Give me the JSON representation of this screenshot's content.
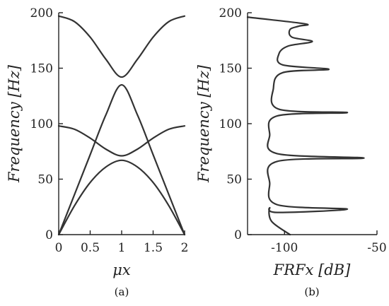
{
  "chart_data": [
    {
      "type": "line",
      "panel_label": "(a)",
      "xlabel": "μx",
      "ylabel": "Frequency [Hz]",
      "xlim": [
        0,
        2
      ],
      "ylim": [
        0,
        200
      ],
      "xticks": [
        "0",
        "0.5",
        "1",
        "1.5",
        "2"
      ],
      "xtick_values": [
        0,
        0.5,
        1,
        1.5,
        2
      ],
      "yticks": [
        "0",
        "50",
        "100",
        "150",
        "200"
      ],
      "ytick_values": [
        0,
        50,
        100,
        150,
        200
      ],
      "grid": false,
      "series": [
        {
          "x": [
            0,
            0.25,
            0.5,
            0.75,
            1,
            1.25,
            1.5,
            1.75,
            2
          ],
          "y": [
            0,
            26,
            47,
            61,
            67,
            61,
            47,
            26,
            0
          ]
        },
        {
          "x": [
            0,
            0.25,
            0.5,
            0.75,
            1,
            1.25,
            1.5,
            1.75,
            2
          ],
          "y": [
            98,
            95,
            87,
            77,
            71,
            77,
            87,
            95,
            98
          ]
        },
        {
          "x": [
            0,
            0.25,
            0.5,
            0.75,
            1,
            1.25,
            1.5,
            1.75,
            2
          ],
          "y": [
            0,
            36,
            72,
            108,
            135,
            108,
            72,
            36,
            0
          ]
        },
        {
          "x": [
            0,
            0.25,
            0.5,
            0.75,
            1,
            1.25,
            1.5,
            1.75,
            2
          ],
          "y": [
            197,
            192,
            178,
            158,
            142,
            158,
            178,
            192,
            197
          ]
        }
      ]
    },
    {
      "type": "line",
      "panel_label": "(b)",
      "xlabel": "FRFx [dB]",
      "ylabel": "Frequency [Hz]",
      "xlim": [
        -120,
        -50
      ],
      "ylim": [
        0,
        200
      ],
      "xticks": [
        "-100",
        "-50"
      ],
      "xtick_values": [
        -100,
        -50
      ],
      "yticks": [
        "0",
        "50",
        "100",
        "150",
        "200"
      ],
      "ytick_values": [
        0,
        50,
        100,
        150,
        200
      ],
      "grid": false,
      "series": [
        {
          "x": [
            -97,
            -107,
            -108,
            -104,
            -66,
            -104,
            -108,
            -104,
            -57,
            -104,
            -108,
            -104,
            -66,
            -103,
            -106,
            -101,
            -76,
            -101,
            -103,
            -98,
            -85,
            -96,
            -97,
            -92,
            -89,
            -120
          ],
          "y": [
            0,
            12,
            24,
            20,
            23,
            27,
            46,
            66,
            69,
            73,
            90,
            107,
            110,
            113,
            132,
            146,
            149,
            153,
            163,
            170,
            174,
            178,
            185,
            188,
            190,
            196
          ]
        }
      ]
    }
  ]
}
